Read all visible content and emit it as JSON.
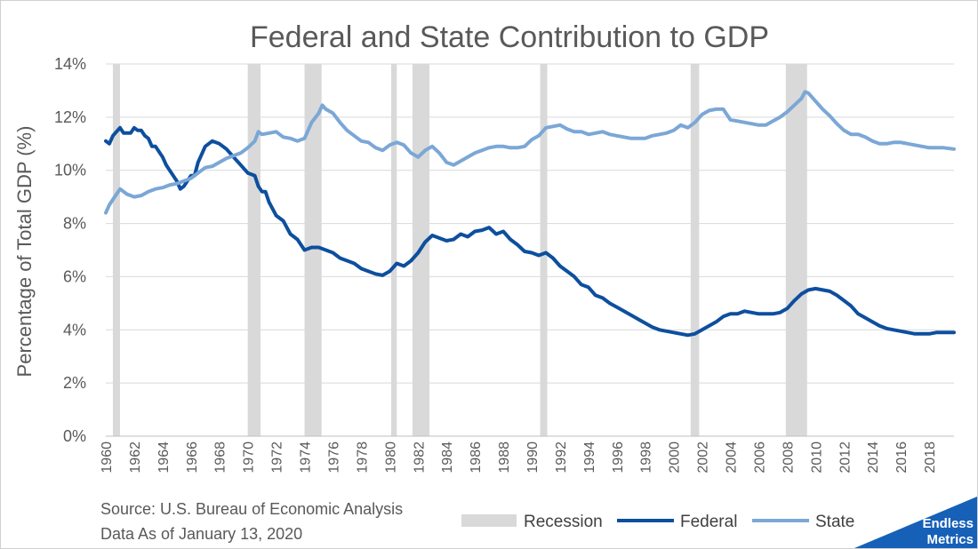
{
  "chart_data": {
    "type": "line",
    "title": "Federal and State Contribution to GDP",
    "ylabel": "Percentage of Total GDP (%)",
    "xlabel": "",
    "xlim": [
      1960,
      2019.75
    ],
    "ylim": [
      0,
      14
    ],
    "y_ticks": [
      "0%",
      "2%",
      "4%",
      "6%",
      "8%",
      "10%",
      "12%",
      "14%"
    ],
    "x_ticks": [
      "1960",
      "1962",
      "1964",
      "1966",
      "1968",
      "1970",
      "1972",
      "1974",
      "1976",
      "1978",
      "1980",
      "1982",
      "1984",
      "1986",
      "1988",
      "1990",
      "1992",
      "1994",
      "1996",
      "1998",
      "2000",
      "2002",
      "2004",
      "2006",
      "2008",
      "2010",
      "2012",
      "2014",
      "2016",
      "2018"
    ],
    "grid": "horizontal",
    "legend_position": "bottom",
    "recession_label": "Recession",
    "recessions": [
      [
        1960.5,
        1961.0
      ],
      [
        1970.0,
        1970.9
      ],
      [
        1974.0,
        1975.2
      ],
      [
        1980.1,
        1980.5
      ],
      [
        1981.6,
        1982.8
      ],
      [
        1990.6,
        1991.1
      ],
      [
        2001.2,
        2001.8
      ],
      [
        2007.9,
        2009.4
      ]
    ],
    "series": [
      {
        "name": "Federal",
        "color": "#0d4f9e",
        "points": [
          [
            1960.0,
            11.1
          ],
          [
            1960.25,
            11.0
          ],
          [
            1960.5,
            11.3
          ],
          [
            1961.0,
            11.6
          ],
          [
            1961.25,
            11.4
          ],
          [
            1961.75,
            11.4
          ],
          [
            1962.0,
            11.6
          ],
          [
            1962.25,
            11.5
          ],
          [
            1962.5,
            11.5
          ],
          [
            1962.75,
            11.3
          ],
          [
            1963.0,
            11.2
          ],
          [
            1963.25,
            10.9
          ],
          [
            1963.5,
            10.9
          ],
          [
            1964.0,
            10.5
          ],
          [
            1964.25,
            10.2
          ],
          [
            1964.5,
            10.0
          ],
          [
            1965.0,
            9.6
          ],
          [
            1965.25,
            9.3
          ],
          [
            1965.5,
            9.4
          ],
          [
            1966.0,
            9.8
          ],
          [
            1966.25,
            9.8
          ],
          [
            1966.5,
            10.3
          ],
          [
            1966.75,
            10.6
          ],
          [
            1967.0,
            10.9
          ],
          [
            1967.25,
            11.0
          ],
          [
            1967.5,
            11.1
          ],
          [
            1968.0,
            11.0
          ],
          [
            1968.5,
            10.8
          ],
          [
            1969.0,
            10.5
          ],
          [
            1969.5,
            10.2
          ],
          [
            1970.0,
            9.9
          ],
          [
            1970.5,
            9.8
          ],
          [
            1970.75,
            9.4
          ],
          [
            1971.0,
            9.2
          ],
          [
            1971.25,
            9.2
          ],
          [
            1971.5,
            8.8
          ],
          [
            1972.0,
            8.3
          ],
          [
            1972.5,
            8.1
          ],
          [
            1973.0,
            7.6
          ],
          [
            1973.5,
            7.4
          ],
          [
            1974.0,
            7.0
          ],
          [
            1974.5,
            7.1
          ],
          [
            1975.0,
            7.1
          ],
          [
            1975.5,
            7.0
          ],
          [
            1976.0,
            6.9
          ],
          [
            1976.5,
            6.7
          ],
          [
            1977.0,
            6.6
          ],
          [
            1977.5,
            6.5
          ],
          [
            1978.0,
            6.3
          ],
          [
            1978.5,
            6.2
          ],
          [
            1979.0,
            6.1
          ],
          [
            1979.5,
            6.05
          ],
          [
            1980.0,
            6.2
          ],
          [
            1980.5,
            6.5
          ],
          [
            1981.0,
            6.4
          ],
          [
            1981.5,
            6.6
          ],
          [
            1982.0,
            6.9
          ],
          [
            1982.5,
            7.3
          ],
          [
            1983.0,
            7.55
          ],
          [
            1983.5,
            7.45
          ],
          [
            1984.0,
            7.35
          ],
          [
            1984.5,
            7.4
          ],
          [
            1985.0,
            7.6
          ],
          [
            1985.5,
            7.5
          ],
          [
            1986.0,
            7.7
          ],
          [
            1986.5,
            7.75
          ],
          [
            1987.0,
            7.85
          ],
          [
            1987.5,
            7.6
          ],
          [
            1988.0,
            7.7
          ],
          [
            1988.5,
            7.4
          ],
          [
            1989.0,
            7.2
          ],
          [
            1989.5,
            6.95
          ],
          [
            1990.0,
            6.9
          ],
          [
            1990.5,
            6.8
          ],
          [
            1991.0,
            6.9
          ],
          [
            1991.5,
            6.7
          ],
          [
            1992.0,
            6.4
          ],
          [
            1992.5,
            6.2
          ],
          [
            1993.0,
            6.0
          ],
          [
            1993.5,
            5.7
          ],
          [
            1994.0,
            5.6
          ],
          [
            1994.5,
            5.3
          ],
          [
            1995.0,
            5.2
          ],
          [
            1995.5,
            5.0
          ],
          [
            1996.0,
            4.85
          ],
          [
            1996.5,
            4.7
          ],
          [
            1997.0,
            4.55
          ],
          [
            1997.5,
            4.4
          ],
          [
            1998.0,
            4.25
          ],
          [
            1998.5,
            4.1
          ],
          [
            1999.0,
            4.0
          ],
          [
            1999.5,
            3.95
          ],
          [
            2000.0,
            3.9
          ],
          [
            2000.5,
            3.85
          ],
          [
            2001.0,
            3.8
          ],
          [
            2001.5,
            3.85
          ],
          [
            2002.0,
            4.0
          ],
          [
            2002.5,
            4.15
          ],
          [
            2003.0,
            4.3
          ],
          [
            2003.5,
            4.5
          ],
          [
            2004.0,
            4.6
          ],
          [
            2004.5,
            4.6
          ],
          [
            2005.0,
            4.7
          ],
          [
            2005.5,
            4.65
          ],
          [
            2006.0,
            4.6
          ],
          [
            2006.5,
            4.6
          ],
          [
            2007.0,
            4.6
          ],
          [
            2007.5,
            4.65
          ],
          [
            2008.0,
            4.8
          ],
          [
            2008.5,
            5.1
          ],
          [
            2009.0,
            5.35
          ],
          [
            2009.5,
            5.5
          ],
          [
            2010.0,
            5.55
          ],
          [
            2010.5,
            5.5
          ],
          [
            2011.0,
            5.45
          ],
          [
            2011.5,
            5.3
          ],
          [
            2012.0,
            5.1
          ],
          [
            2012.5,
            4.9
          ],
          [
            2013.0,
            4.6
          ],
          [
            2013.5,
            4.45
          ],
          [
            2014.0,
            4.3
          ],
          [
            2014.5,
            4.15
          ],
          [
            2015.0,
            4.05
          ],
          [
            2015.5,
            4.0
          ],
          [
            2016.0,
            3.95
          ],
          [
            2016.5,
            3.9
          ],
          [
            2017.0,
            3.85
          ],
          [
            2017.5,
            3.85
          ],
          [
            2018.0,
            3.85
          ],
          [
            2018.5,
            3.9
          ],
          [
            2019.0,
            3.9
          ],
          [
            2019.75,
            3.9
          ]
        ]
      },
      {
        "name": "State",
        "color": "#7ba7d6",
        "points": [
          [
            1960.0,
            8.4
          ],
          [
            1960.25,
            8.7
          ],
          [
            1960.5,
            8.9
          ],
          [
            1961.0,
            9.3
          ],
          [
            1961.5,
            9.1
          ],
          [
            1962.0,
            9.0
          ],
          [
            1962.5,
            9.05
          ],
          [
            1963.0,
            9.2
          ],
          [
            1963.5,
            9.3
          ],
          [
            1964.0,
            9.35
          ],
          [
            1964.5,
            9.45
          ],
          [
            1965.0,
            9.5
          ],
          [
            1965.5,
            9.6
          ],
          [
            1966.0,
            9.7
          ],
          [
            1966.5,
            9.9
          ],
          [
            1967.0,
            10.1
          ],
          [
            1967.5,
            10.15
          ],
          [
            1968.0,
            10.3
          ],
          [
            1968.5,
            10.45
          ],
          [
            1969.0,
            10.55
          ],
          [
            1969.5,
            10.65
          ],
          [
            1970.0,
            10.85
          ],
          [
            1970.5,
            11.1
          ],
          [
            1970.75,
            11.45
          ],
          [
            1971.0,
            11.35
          ],
          [
            1971.5,
            11.4
          ],
          [
            1972.0,
            11.45
          ],
          [
            1972.5,
            11.25
          ],
          [
            1973.0,
            11.2
          ],
          [
            1973.5,
            11.1
          ],
          [
            1974.0,
            11.2
          ],
          [
            1974.5,
            11.8
          ],
          [
            1975.0,
            12.15
          ],
          [
            1975.25,
            12.45
          ],
          [
            1975.5,
            12.3
          ],
          [
            1976.0,
            12.15
          ],
          [
            1976.5,
            11.8
          ],
          [
            1977.0,
            11.5
          ],
          [
            1977.5,
            11.3
          ],
          [
            1978.0,
            11.1
          ],
          [
            1978.5,
            11.05
          ],
          [
            1979.0,
            10.85
          ],
          [
            1979.5,
            10.75
          ],
          [
            1980.0,
            10.95
          ],
          [
            1980.5,
            11.05
          ],
          [
            1981.0,
            10.95
          ],
          [
            1981.5,
            10.65
          ],
          [
            1982.0,
            10.5
          ],
          [
            1982.5,
            10.75
          ],
          [
            1983.0,
            10.9
          ],
          [
            1983.5,
            10.65
          ],
          [
            1984.0,
            10.3
          ],
          [
            1984.5,
            10.2
          ],
          [
            1985.0,
            10.35
          ],
          [
            1985.5,
            10.5
          ],
          [
            1986.0,
            10.65
          ],
          [
            1986.5,
            10.75
          ],
          [
            1987.0,
            10.85
          ],
          [
            1987.5,
            10.9
          ],
          [
            1988.0,
            10.9
          ],
          [
            1988.5,
            10.85
          ],
          [
            1989.0,
            10.85
          ],
          [
            1989.5,
            10.9
          ],
          [
            1990.0,
            11.15
          ],
          [
            1990.5,
            11.3
          ],
          [
            1991.0,
            11.6
          ],
          [
            1991.5,
            11.65
          ],
          [
            1992.0,
            11.7
          ],
          [
            1992.5,
            11.55
          ],
          [
            1993.0,
            11.45
          ],
          [
            1993.5,
            11.45
          ],
          [
            1994.0,
            11.35
          ],
          [
            1994.5,
            11.4
          ],
          [
            1995.0,
            11.45
          ],
          [
            1995.5,
            11.35
          ],
          [
            1996.0,
            11.3
          ],
          [
            1996.5,
            11.25
          ],
          [
            1997.0,
            11.2
          ],
          [
            1997.5,
            11.2
          ],
          [
            1998.0,
            11.2
          ],
          [
            1998.5,
            11.3
          ],
          [
            1999.0,
            11.35
          ],
          [
            1999.5,
            11.4
          ],
          [
            2000.0,
            11.5
          ],
          [
            2000.5,
            11.7
          ],
          [
            2001.0,
            11.6
          ],
          [
            2001.5,
            11.8
          ],
          [
            2002.0,
            12.1
          ],
          [
            2002.5,
            12.25
          ],
          [
            2003.0,
            12.3
          ],
          [
            2003.5,
            12.3
          ],
          [
            2004.0,
            11.9
          ],
          [
            2004.5,
            11.85
          ],
          [
            2005.0,
            11.8
          ],
          [
            2005.5,
            11.75
          ],
          [
            2006.0,
            11.7
          ],
          [
            2006.5,
            11.7
          ],
          [
            2007.0,
            11.85
          ],
          [
            2007.5,
            12.0
          ],
          [
            2008.0,
            12.2
          ],
          [
            2008.5,
            12.45
          ],
          [
            2009.0,
            12.7
          ],
          [
            2009.25,
            12.95
          ],
          [
            2009.5,
            12.9
          ],
          [
            2010.0,
            12.6
          ],
          [
            2010.5,
            12.3
          ],
          [
            2011.0,
            12.05
          ],
          [
            2011.5,
            11.75
          ],
          [
            2012.0,
            11.5
          ],
          [
            2012.5,
            11.35
          ],
          [
            2013.0,
            11.35
          ],
          [
            2013.5,
            11.25
          ],
          [
            2014.0,
            11.1
          ],
          [
            2014.5,
            11.0
          ],
          [
            2015.0,
            11.0
          ],
          [
            2015.5,
            11.05
          ],
          [
            2016.0,
            11.05
          ],
          [
            2016.5,
            11.0
          ],
          [
            2017.0,
            10.95
          ],
          [
            2017.5,
            10.9
          ],
          [
            2018.0,
            10.85
          ],
          [
            2018.5,
            10.85
          ],
          [
            2019.0,
            10.85
          ],
          [
            2019.75,
            10.8
          ]
        ]
      }
    ]
  },
  "notes": {
    "source": "Source: U.S. Bureau of Economic Analysis",
    "date": "Data As of January 13, 2020"
  },
  "legend": {
    "recession": "Recession",
    "federal": "Federal",
    "state": "State"
  },
  "logo": {
    "line1": "Endless",
    "line2": "Metrics",
    "color": "#1660b8"
  },
  "colors": {
    "text": "#595959",
    "grid": "#d9d9d9",
    "recession": "#d9d9d9"
  }
}
